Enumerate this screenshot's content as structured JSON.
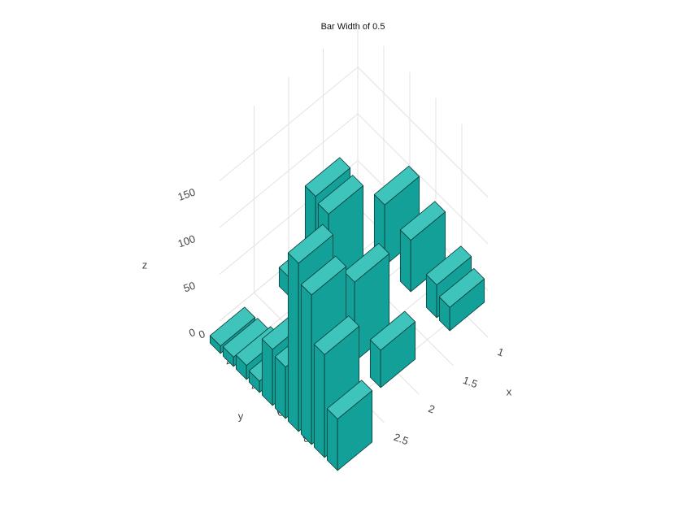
{
  "chart_data": {
    "type": "bar3d",
    "title": "Bar Width of 0.5",
    "x": [
      1,
      1,
      1,
      1,
      2,
      2,
      2,
      2,
      2,
      3,
      3,
      3,
      3,
      3,
      3,
      3,
      3,
      3,
      3
    ],
    "y": [
      3,
      5,
      7,
      8,
      1,
      3,
      4,
      6,
      8,
      1,
      2,
      3,
      4,
      5,
      6,
      7,
      8,
      9,
      10
    ],
    "z": [
      65,
      55,
      35,
      25,
      20,
      135,
      130,
      85,
      40,
      8,
      10,
      15,
      12,
      60,
      55,
      180,
      160,
      110,
      55
    ],
    "color": "#13a098",
    "x_label": "x",
    "y_label": "y",
    "z_label": "z",
    "xlim": [
      1,
      3
    ],
    "xticks": [
      1,
      1.5,
      2,
      2.5
    ],
    "ylim": [
      0,
      10
    ],
    "yticks": [
      0,
      2,
      4,
      6,
      8
    ],
    "zlim": [
      0,
      200
    ],
    "zticks": [
      0,
      50,
      100,
      150
    ],
    "grid": true
  }
}
